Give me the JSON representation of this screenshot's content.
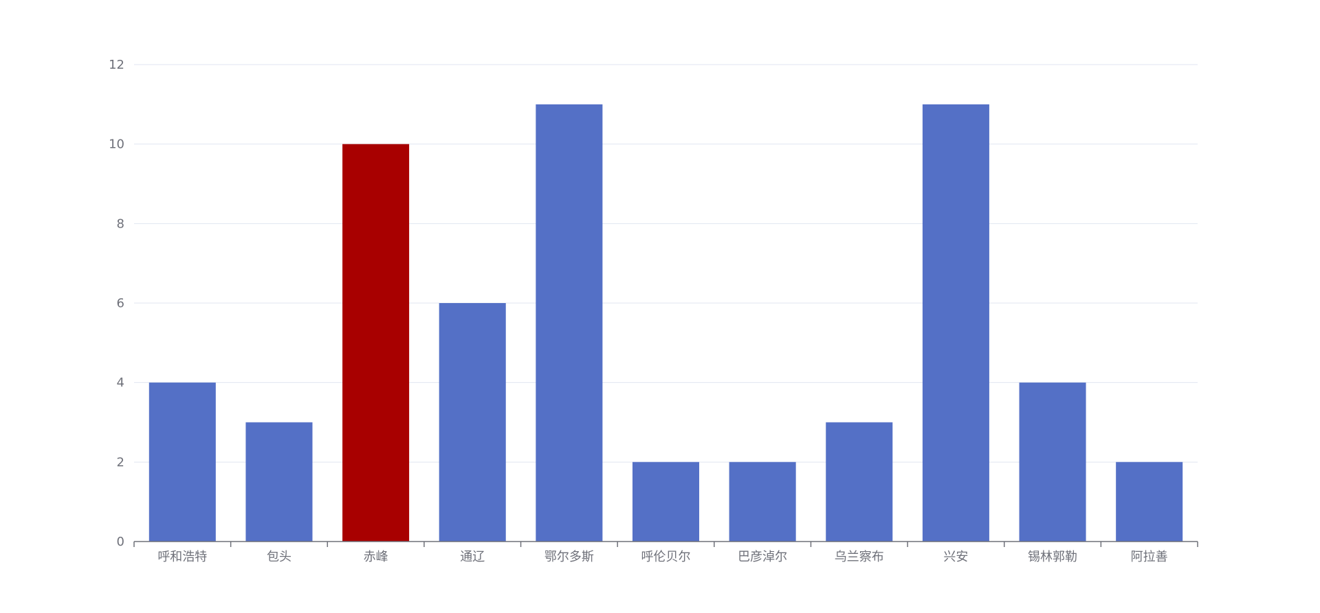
{
  "chart_data": {
    "type": "bar",
    "title": "",
    "xlabel": "",
    "ylabel": "",
    "categories": [
      "呼和浩特",
      "包头",
      "赤峰",
      "通辽",
      "鄂尔多斯",
      "呼伦贝尔",
      "巴彦淖尔",
      "乌兰察布",
      "兴安",
      "锡林郭勒",
      "阿拉善"
    ],
    "series": [
      {
        "values": [
          4,
          3,
          10,
          6,
          11,
          2,
          2,
          3,
          11,
          4,
          2
        ]
      }
    ],
    "highlight_category": "赤峰",
    "ylim": [
      0,
      12
    ],
    "yticks": [
      0,
      2,
      4,
      6,
      8,
      10,
      12
    ],
    "grid": true,
    "legend": "none",
    "colors": {
      "bar": "#5470c6",
      "highlight": "#a80000",
      "grid": "#e0e6f1",
      "axis": "#6e7079",
      "text": "#6e7079"
    }
  }
}
